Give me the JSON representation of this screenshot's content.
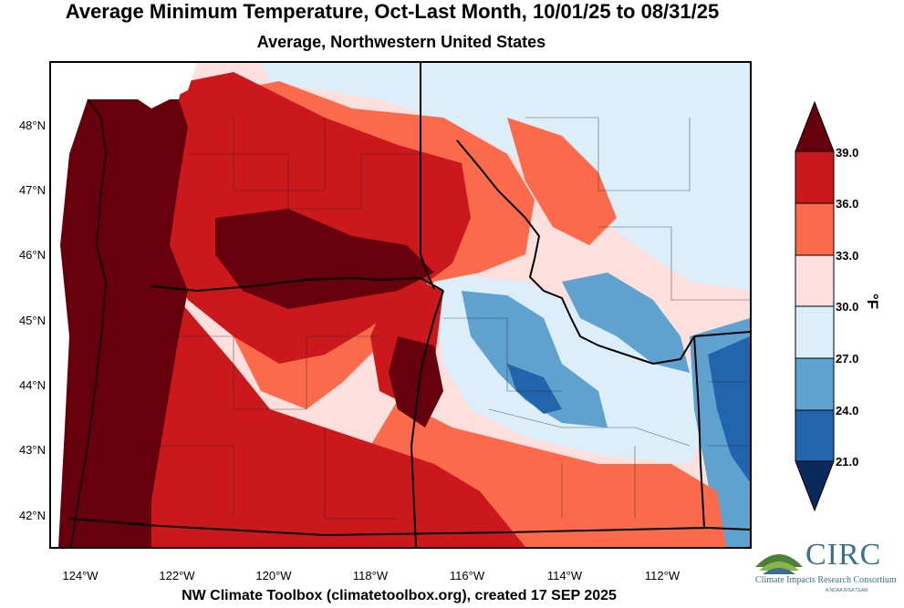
{
  "title": "Average Minimum Temperature, Oct-Last Month, 10/01/25 to 08/31/25",
  "subtitle": "Average, Northwestern United States",
  "footer": "NW Climate Toolbox (climatetoolbox.org), created 17 SEP 2025",
  "lat_labels": [
    "48°N",
    "47°N",
    "46°N",
    "45°N",
    "44°N",
    "43°N",
    "42°N"
  ],
  "lon_labels": [
    "124°W",
    "122°W",
    "120°W",
    "118°W",
    "116°W",
    "114°W",
    "112°W"
  ],
  "colorbar": {
    "unit": "°F",
    "tick_labels": [
      "39.0",
      "36.0",
      "33.0",
      "30.0",
      "27.0",
      "24.0",
      "21.0"
    ],
    "colors": [
      "#67000d",
      "#cb181d",
      "#fb6a4a",
      "#fde0dd",
      "#dceefa",
      "#5fa2d0",
      "#2166ac",
      "#0a2a5c"
    ]
  },
  "logo": {
    "name": "CIRC",
    "subtitle": "Climate Impacts Research Consortium",
    "tagline": "A NOAA RISA TEAM"
  }
}
